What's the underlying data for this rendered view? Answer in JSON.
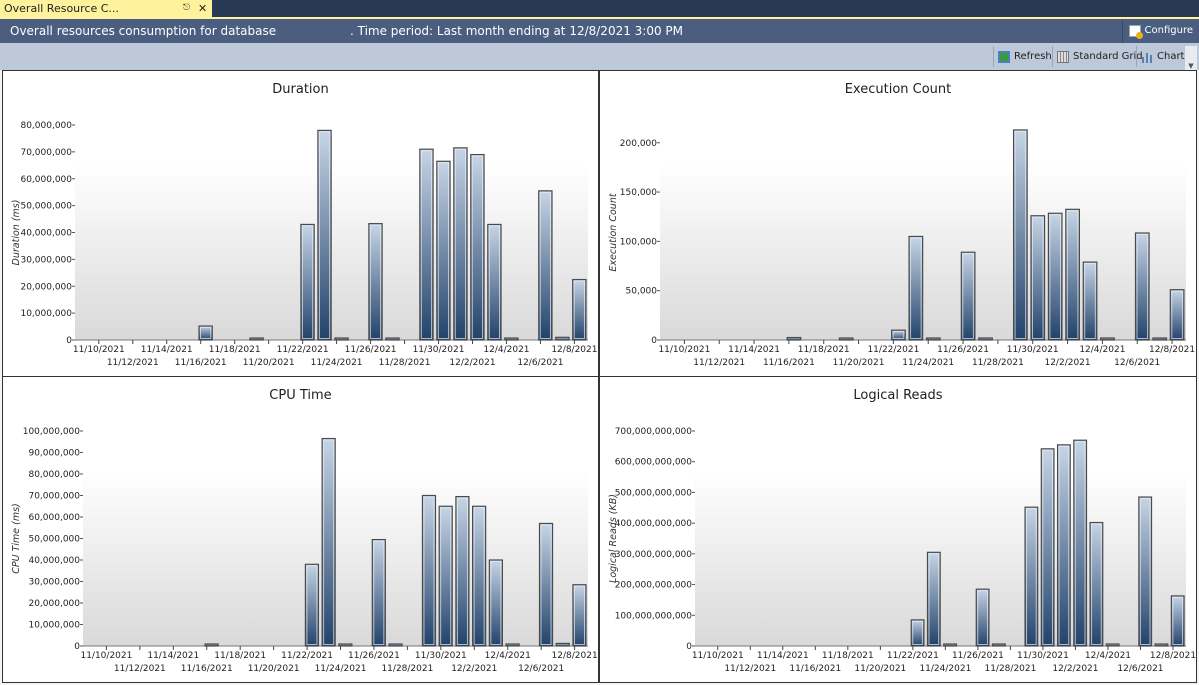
{
  "tab": {
    "label": "Overall Resource C...",
    "pin_icon": "pin-icon",
    "close_icon": "close-icon"
  },
  "header": {
    "title": "Overall resources consumption for database",
    "period": ". Time period: Last month ending at 12/8/2021 3:00 PM",
    "configure_label": "Configure"
  },
  "toolbar": {
    "refresh_label": "Refresh",
    "grid_label": "Standard Grid",
    "chart_label": "Chart"
  },
  "colors": {
    "bar_top": "#c7d5e6",
    "bar_bottom": "#22426a",
    "tab": "#fff29d",
    "header": "#4b5e80"
  },
  "chart_data": [
    {
      "type": "bar",
      "title": "Duration",
      "ylabel": "Duration (ms)",
      "ylim": [
        0,
        80000000
      ],
      "yticks": [
        0,
        10000000,
        20000000,
        30000000,
        40000000,
        50000000,
        60000000,
        70000000,
        80000000
      ],
      "xticks": [
        "11/10/2021",
        "11/12/2021",
        "11/14/2021",
        "11/16/2021",
        "11/18/2021",
        "11/20/2021",
        "11/22/2021",
        "11/24/2021",
        "11/26/2021",
        "11/28/2021",
        "11/30/2021",
        "12/2/2021",
        "12/4/2021",
        "12/6/2021",
        "12/8/2021"
      ],
      "points": [
        [
          "11/16/2021",
          5200000
        ],
        [
          "11/19/2021",
          100000
        ],
        [
          "11/22/2021",
          43000000
        ],
        [
          "11/23/2021",
          78000000
        ],
        [
          "11/24/2021",
          700000
        ],
        [
          "11/26/2021",
          43300000
        ],
        [
          "11/27/2021",
          700000
        ],
        [
          "11/29/2021",
          71000000
        ],
        [
          "11/30/2021",
          66500000
        ],
        [
          "12/1/2021",
          71500000
        ],
        [
          "12/2/2021",
          69000000
        ],
        [
          "12/3/2021",
          43000000
        ],
        [
          "12/4/2021",
          300000
        ],
        [
          "12/6/2021",
          55500000
        ],
        [
          "12/7/2021",
          1000000
        ],
        [
          "12/8/2021",
          22500000
        ]
      ]
    },
    {
      "type": "bar",
      "title": "Execution Count",
      "ylabel": "Execution Count",
      "ylim": [
        0,
        218000
      ],
      "yticks": [
        0,
        50000,
        100000,
        150000,
        200000
      ],
      "xticks": [
        "11/10/2021",
        "11/12/2021",
        "11/14/2021",
        "11/16/2021",
        "11/18/2021",
        "11/20/2021",
        "11/22/2021",
        "11/24/2021",
        "11/26/2021",
        "11/28/2021",
        "11/30/2021",
        "12/2/2021",
        "12/4/2021",
        "12/6/2021",
        "12/8/2021"
      ],
      "points": [
        [
          "11/16/2021",
          2500
        ],
        [
          "11/19/2021",
          200
        ],
        [
          "11/22/2021",
          10000
        ],
        [
          "11/23/2021",
          105000
        ],
        [
          "11/24/2021",
          500
        ],
        [
          "11/26/2021",
          89000
        ],
        [
          "11/27/2021",
          2000
        ],
        [
          "11/29/2021",
          213000
        ],
        [
          "11/30/2021",
          126000
        ],
        [
          "12/1/2021",
          128500
        ],
        [
          "12/2/2021",
          132500
        ],
        [
          "12/3/2021",
          79000
        ],
        [
          "12/4/2021",
          500
        ],
        [
          "12/6/2021",
          108500
        ],
        [
          "12/7/2021",
          2000
        ],
        [
          "12/8/2021",
          51000
        ]
      ]
    },
    {
      "type": "bar",
      "title": "CPU Time",
      "ylabel": "CPU Time (ms)",
      "ylim": [
        0,
        100000000
      ],
      "yticks": [
        0,
        10000000,
        20000000,
        30000000,
        40000000,
        50000000,
        60000000,
        70000000,
        80000000,
        90000000,
        100000000
      ],
      "xticks": [
        "11/10/2021",
        "11/12/2021",
        "11/14/2021",
        "11/16/2021",
        "11/18/2021",
        "11/20/2021",
        "11/22/2021",
        "11/24/2021",
        "11/26/2021",
        "11/28/2021",
        "11/30/2021",
        "12/2/2021",
        "12/4/2021",
        "12/6/2021",
        "12/8/2021"
      ],
      "points": [
        [
          "11/16/2021",
          300000
        ],
        [
          "11/22/2021",
          38000000
        ],
        [
          "11/23/2021",
          96500000
        ],
        [
          "11/24/2021",
          800000
        ],
        [
          "11/26/2021",
          49500000
        ],
        [
          "11/27/2021",
          600000
        ],
        [
          "11/29/2021",
          70000000
        ],
        [
          "11/30/2021",
          65000000
        ],
        [
          "12/1/2021",
          69500000
        ],
        [
          "12/2/2021",
          65000000
        ],
        [
          "12/3/2021",
          40000000
        ],
        [
          "12/4/2021",
          500000
        ],
        [
          "12/6/2021",
          57000000
        ],
        [
          "12/7/2021",
          1200000
        ],
        [
          "12/8/2021",
          28500000
        ]
      ]
    },
    {
      "type": "bar",
      "title": "Logical Reads",
      "ylabel": "Logical Reads (KB)",
      "ylim": [
        0,
        700000000000
      ],
      "yticks": [
        0,
        100000000000,
        200000000000,
        300000000000,
        400000000000,
        500000000000,
        600000000000,
        700000000000
      ],
      "xticks": [
        "11/10/2021",
        "11/12/2021",
        "11/14/2021",
        "11/16/2021",
        "11/18/2021",
        "11/20/2021",
        "11/22/2021",
        "11/24/2021",
        "11/26/2021",
        "11/28/2021",
        "11/30/2021",
        "12/2/2021",
        "12/4/2021",
        "12/6/2021",
        "12/8/2021"
      ],
      "points": [
        [
          "11/22/2021",
          85000000000
        ],
        [
          "11/23/2021",
          305000000000
        ],
        [
          "11/24/2021",
          1500000000
        ],
        [
          "11/26/2021",
          185000000000
        ],
        [
          "11/27/2021",
          3000000000
        ],
        [
          "11/29/2021",
          452000000000
        ],
        [
          "11/30/2021",
          642000000000
        ],
        [
          "12/1/2021",
          655000000000
        ],
        [
          "12/2/2021",
          670000000000
        ],
        [
          "12/3/2021",
          402000000000
        ],
        [
          "12/4/2021",
          3000000000
        ],
        [
          "12/6/2021",
          485000000000
        ],
        [
          "12/7/2021",
          5000000000
        ],
        [
          "12/8/2021",
          163000000000
        ]
      ]
    }
  ]
}
